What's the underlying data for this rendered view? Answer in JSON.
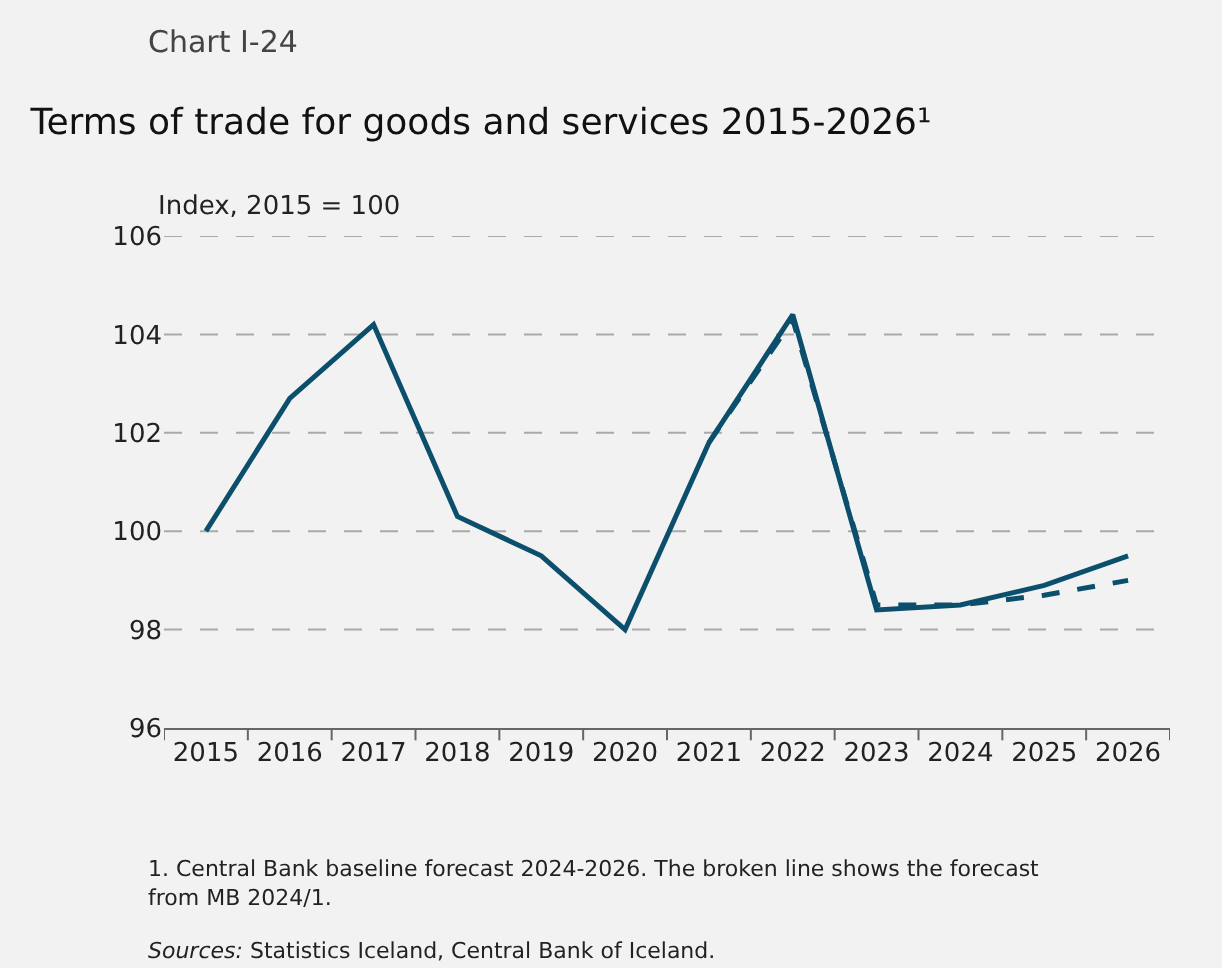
{
  "chart_data": {
    "type": "line",
    "subtitle": "Chart I-24",
    "title": "Terms of trade for goods and services 2015-2026¹",
    "ylabel": "Index, 2015 = 100",
    "categories": [
      "2015",
      "2016",
      "2017",
      "2018",
      "2019",
      "2020",
      "2021",
      "2022",
      "2023",
      "2024",
      "2025",
      "2026"
    ],
    "series": [
      {
        "color": "#0b4f6c",
        "line_style": "solid",
        "values": [
          100,
          102.7,
          104.2,
          100.3,
          99.5,
          98.0,
          101.8,
          104.4,
          98.4,
          98.5,
          98.9,
          99.5
        ]
      },
      {
        "color": "#0b4f6c",
        "line_style": "dashed",
        "values": [
          null,
          null,
          null,
          null,
          null,
          null,
          101.8,
          104.3,
          98.5,
          98.5,
          98.7,
          99.0
        ]
      }
    ],
    "ylim": [
      96,
      106
    ],
    "yticks": [
      96,
      98,
      100,
      102,
      104,
      106
    ],
    "grid": "y",
    "marker": "none",
    "annotations": [
      "1. Central Bank baseline forecast 2024-2026. The broken line shows the forecast from MB 2024/1.",
      "Sources: Statistics Iceland, Central Bank of Iceland."
    ]
  }
}
